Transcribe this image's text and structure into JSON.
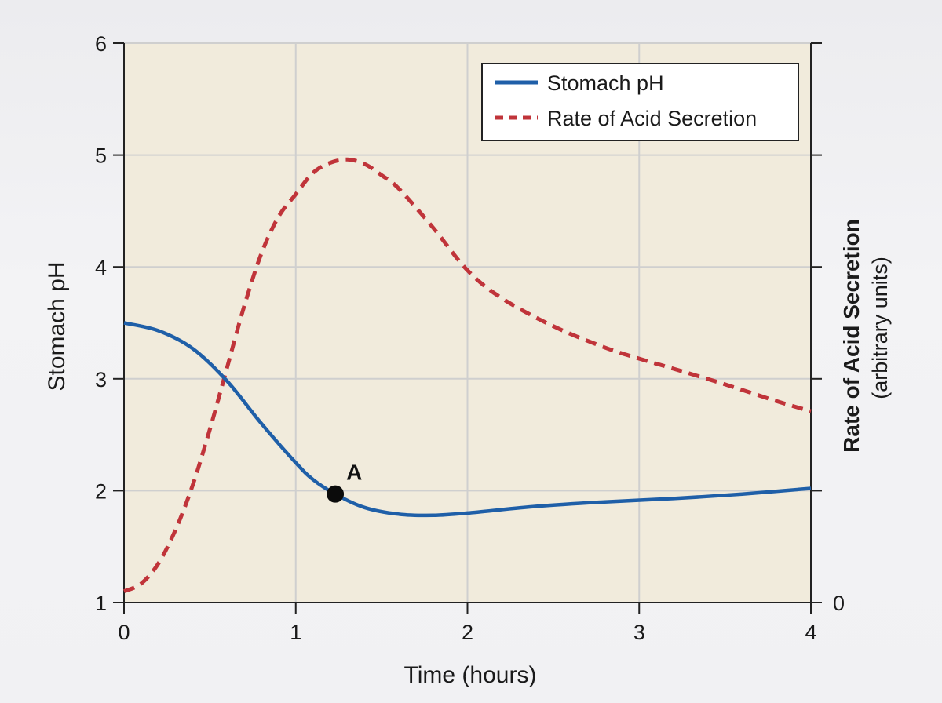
{
  "chart_data": {
    "type": "line",
    "title": "",
    "xlabel": "Time (hours)",
    "ylabel": "Stomach pH",
    "y2label": "Rate of Acid Secretion",
    "y2label_sub": "(arbitrary units)",
    "xlim": [
      0,
      4
    ],
    "ylim": [
      1,
      6
    ],
    "x_ticks": [
      "0",
      "1",
      "2",
      "3",
      "4"
    ],
    "y_ticks": [
      "1",
      "2",
      "3",
      "4",
      "5",
      "6"
    ],
    "y2_ticks": [
      "0"
    ],
    "grid": true,
    "legend_position": "top-right",
    "colors": {
      "ph": "#1f5fa8",
      "acid": "#c0343a",
      "plot_bg": "#f1ebdc",
      "grid": "#cfcfcf"
    },
    "series": [
      {
        "name": "Stomach pH",
        "style": "solid",
        "x": [
          0,
          0.2,
          0.4,
          0.6,
          0.8,
          1.0,
          1.1,
          1.23,
          1.4,
          1.6,
          1.8,
          2.0,
          2.4,
          2.8,
          3.2,
          3.6,
          4.0
        ],
        "y": [
          3.5,
          3.43,
          3.27,
          2.98,
          2.6,
          2.25,
          2.1,
          1.97,
          1.85,
          1.79,
          1.78,
          1.8,
          1.86,
          1.9,
          1.93,
          1.97,
          2.02
        ]
      },
      {
        "name": "Rate of Acid Secretion",
        "style": "dashed",
        "x": [
          0,
          0.1,
          0.2,
          0.3,
          0.4,
          0.5,
          0.6,
          0.7,
          0.8,
          0.9,
          1.0,
          1.1,
          1.2,
          1.3,
          1.4,
          1.5,
          1.6,
          1.8,
          2.0,
          2.2,
          2.5,
          2.8,
          3.0,
          3.2,
          3.5,
          3.8,
          4.0
        ],
        "y": [
          1.1,
          1.17,
          1.35,
          1.65,
          2.05,
          2.55,
          3.1,
          3.65,
          4.12,
          4.45,
          4.65,
          4.84,
          4.93,
          4.96,
          4.92,
          4.82,
          4.7,
          4.35,
          3.97,
          3.72,
          3.47,
          3.28,
          3.18,
          3.09,
          2.95,
          2.8,
          2.71
        ]
      }
    ],
    "annotations": [
      {
        "label": "A",
        "x": 1.23,
        "y": 1.97
      }
    ]
  }
}
